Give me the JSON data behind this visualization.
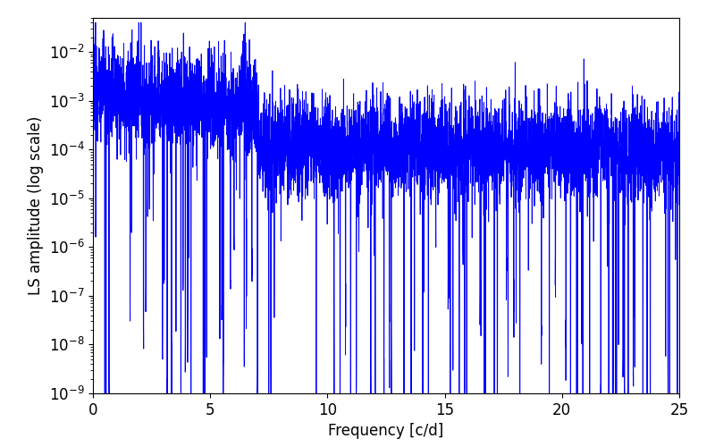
{
  "xlabel": "Frequency [c/d]",
  "ylabel": "LS amplitude (log scale)",
  "xlim": [
    0,
    25
  ],
  "ylim": [
    1e-09,
    0.05
  ],
  "line_color": "#0000ff",
  "line_width": 0.7,
  "background_color": "#ffffff",
  "figsize": [
    8.0,
    5.0
  ],
  "dpi": 100,
  "seed": 12345,
  "n_points": 5000,
  "freq_max": 25.0
}
